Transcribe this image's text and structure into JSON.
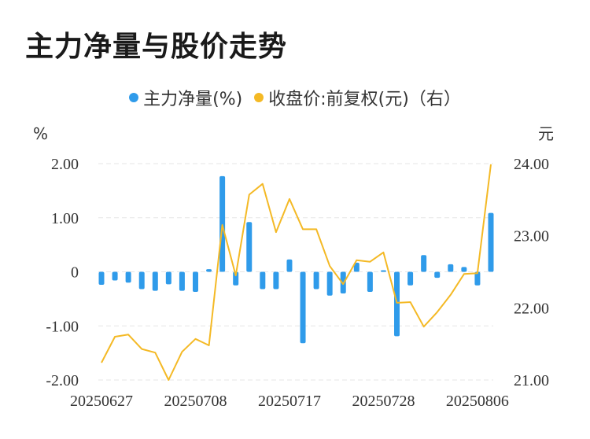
{
  "title": "主力净量与股价走势",
  "legend": {
    "series1_label": "主力净量(%)",
    "series2_label": "收盘价:前复权(元)（右）"
  },
  "colors": {
    "bar": "#2f9bea",
    "line": "#f4b925",
    "grid": "#e6e6e6"
  },
  "chart_data": {
    "type": "bar+line",
    "title": "主力净量与股价走势",
    "y_left_unit": "%",
    "y_right_unit": "元",
    "y_left_ticks": [
      "2.00",
      "1.00",
      "0",
      "-1.00",
      "-2.00"
    ],
    "y_right_ticks": [
      "24.00",
      "23.00",
      "22.00",
      "21.00"
    ],
    "y_left_range": [
      -2,
      2
    ],
    "y_right_range": [
      21,
      24
    ],
    "x_tick_labels": [
      "20250627",
      "20250708",
      "20250717",
      "20250728",
      "20250806"
    ],
    "x_tick_indices": [
      0,
      7,
      14,
      21,
      28
    ],
    "grid": true,
    "series": [
      {
        "name": "主力净量(%)",
        "type": "bar",
        "axis": "left",
        "values": [
          -0.24,
          -0.16,
          -0.2,
          -0.32,
          -0.35,
          -0.23,
          -0.35,
          -0.37,
          0.05,
          1.77,
          -0.25,
          0.92,
          -0.32,
          -0.32,
          0.23,
          -1.32,
          -0.32,
          -0.44,
          -0.4,
          0.17,
          -0.37,
          0.03,
          -1.19,
          -0.25,
          0.31,
          -0.11,
          0.14,
          0.09,
          -0.25,
          1.09
        ]
      },
      {
        "name": "收盘价:前复权(元)（右）",
        "type": "line",
        "axis": "right",
        "values": [
          21.24,
          21.6,
          21.63,
          21.43,
          21.38,
          21.0,
          21.39,
          21.57,
          21.48,
          23.15,
          22.45,
          23.57,
          23.72,
          23.05,
          23.51,
          23.09,
          23.09,
          22.58,
          22.33,
          22.66,
          22.64,
          22.77,
          22.07,
          22.08,
          21.74,
          21.94,
          22.18,
          22.47,
          22.48,
          23.99
        ]
      }
    ]
  }
}
